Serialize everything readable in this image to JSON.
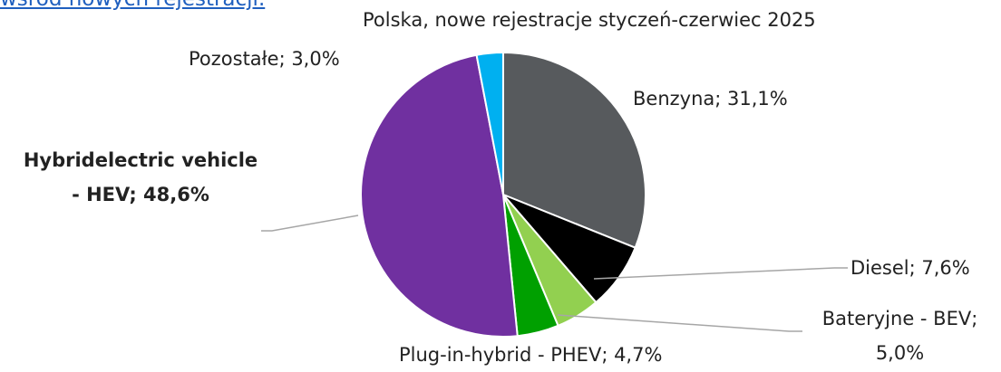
{
  "link_text": "wśród nowych rejestracji.",
  "chart_data": {
    "type": "pie",
    "title": "Polska, nowe rejestracje styczeń-czerwiec 2025",
    "labels": [
      "Benzyna; 31,1%",
      "Diesel; 7,6%",
      "Bateryjne - BEV; 5,0%",
      "Plug-in-hybrid - PHEV; 4,7%",
      "Hybridelectric vehicle - HEV; 48,6%",
      "Pozostałe; 3,0%"
    ],
    "values": [
      31.1,
      7.6,
      5.0,
      4.7,
      48.6,
      3.0
    ],
    "colors": [
      "#575a5d",
      "#000000",
      "#92d050",
      "#00a000",
      "#7030a0",
      "#00b0f0"
    ]
  }
}
